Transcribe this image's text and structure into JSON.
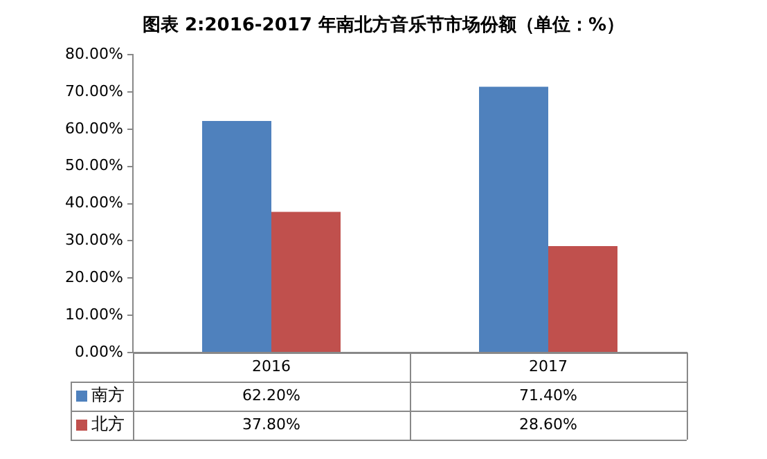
{
  "chart_data": {
    "type": "bar",
    "title": "图表 2:2016-2017 年南北方音乐节市场份额（单位：%）",
    "categories": [
      "2016",
      "2017"
    ],
    "series": [
      {
        "name": "南方",
        "color": "#4f81bd",
        "values": [
          62.2,
          71.4
        ],
        "value_labels": [
          "62.20%",
          "71.40%"
        ]
      },
      {
        "name": "北方",
        "color": "#c0504d",
        "values": [
          37.8,
          28.6
        ],
        "value_labels": [
          "37.80%",
          "28.60%"
        ]
      }
    ],
    "ylim": [
      0,
      80
    ],
    "yticks": [
      {
        "value": 0,
        "label": "0.00%"
      },
      {
        "value": 10,
        "label": "10.00%"
      },
      {
        "value": 20,
        "label": "20.00%"
      },
      {
        "value": 30,
        "label": "30.00%"
      },
      {
        "value": 40,
        "label": "40.00%"
      },
      {
        "value": 50,
        "label": "50.00%"
      },
      {
        "value": 60,
        "label": "60.00%"
      },
      {
        "value": 70,
        "label": "70.00%"
      },
      {
        "value": 80,
        "label": "80.00%"
      }
    ],
    "grid": false,
    "legend": "bottom"
  }
}
